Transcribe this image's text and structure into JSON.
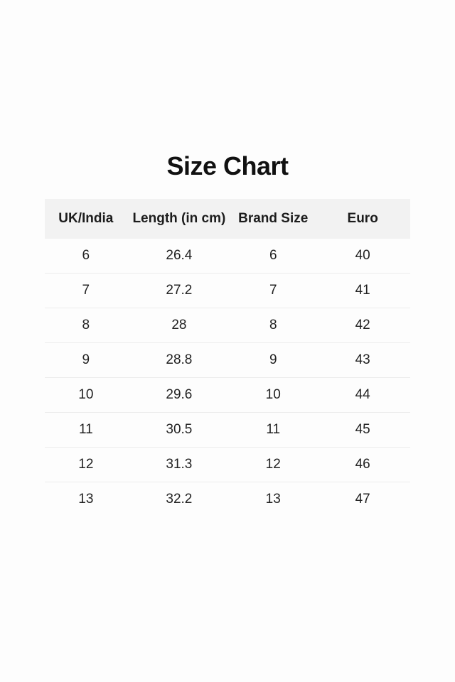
{
  "page": {
    "title": "Size Chart",
    "background_color": "#fdfdfd",
    "text_color": "#1c1c1c",
    "header_bg_color": "#f2f2f2",
    "divider_color": "#ececec"
  },
  "table": {
    "headers": [
      "UK/India",
      "Length (in cm)",
      "Brand Size",
      "Euro"
    ],
    "rows": [
      [
        "6",
        "26.4",
        "6",
        "40"
      ],
      [
        "7",
        "27.2",
        "7",
        "41"
      ],
      [
        "8",
        "28",
        "8",
        "42"
      ],
      [
        "9",
        "28.8",
        "9",
        "43"
      ],
      [
        "10",
        "29.6",
        "10",
        "44"
      ],
      [
        "11",
        "30.5",
        "11",
        "45"
      ],
      [
        "12",
        "31.3",
        "12",
        "46"
      ],
      [
        "13",
        "32.2",
        "13",
        "47"
      ]
    ]
  },
  "chart_data": {
    "type": "table",
    "title": "Size Chart",
    "columns": [
      "UK/India",
      "Length (in cm)",
      "Brand Size",
      "Euro"
    ],
    "rows": [
      [
        "6",
        "26.4",
        "6",
        "40"
      ],
      [
        "7",
        "27.2",
        "7",
        "41"
      ],
      [
        "8",
        "28",
        "8",
        "42"
      ],
      [
        "9",
        "28.8",
        "9",
        "43"
      ],
      [
        "10",
        "29.6",
        "10",
        "44"
      ],
      [
        "11",
        "30.5",
        "11",
        "45"
      ],
      [
        "12",
        "31.3",
        "12",
        "46"
      ],
      [
        "13",
        "32.2",
        "13",
        "47"
      ]
    ],
    "layout_hints": {
      "header_row_shaded": true,
      "row_dividers": true,
      "alignment": "center"
    }
  }
}
